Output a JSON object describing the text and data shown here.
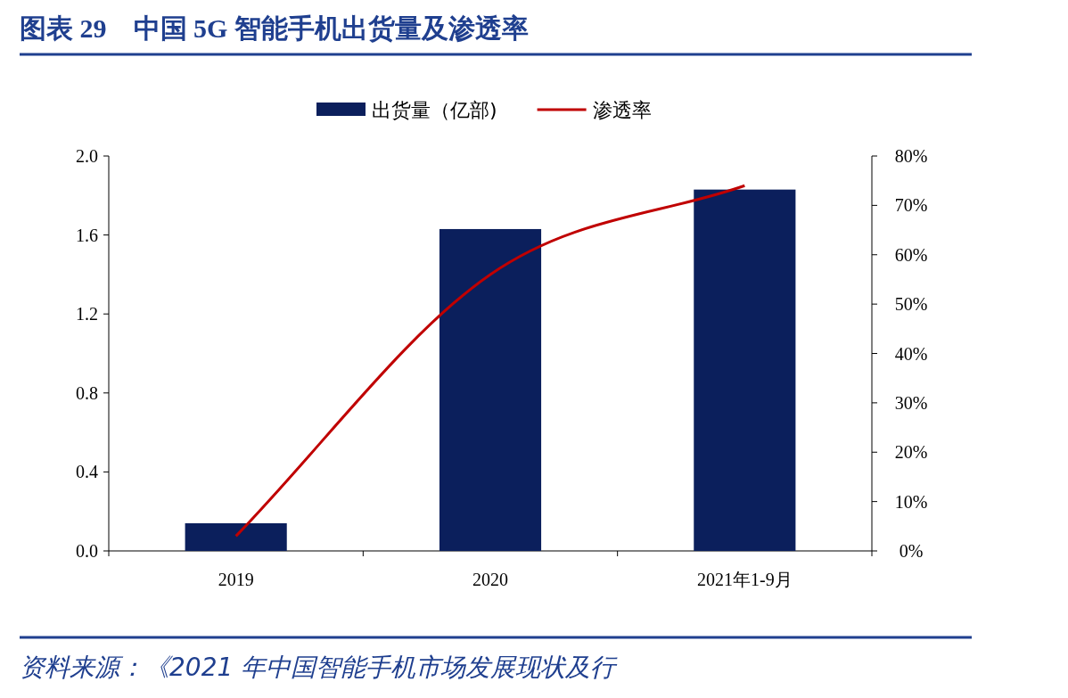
{
  "chart_data": {
    "type": "bar",
    "title": "图表 29　中国 5G 智能手机出货量及渗透率",
    "categories": [
      "2019",
      "2020",
      "2021年1-9月"
    ],
    "series": [
      {
        "name": "出货量（亿部)",
        "color": "#0b1f5c",
        "values": [
          0.14,
          1.63,
          1.83
        ]
      },
      {
        "name": "渗透率",
        "type": "line",
        "axis": "y2",
        "color": "#c00000",
        "values": [
          3,
          56,
          74
        ]
      }
    ],
    "ylim": [
      0,
      2
    ],
    "yticks": [
      {
        "value": 0,
        "label": "0.0"
      },
      {
        "value": 0.4,
        "label": "0.4"
      },
      {
        "value": 0.8,
        "label": "0.8"
      },
      {
        "value": 1.2,
        "label": "1.2"
      },
      {
        "value": 1.6,
        "label": "1.6"
      },
      {
        "value": 2,
        "label": "2.0"
      }
    ],
    "y2lim": [
      0,
      80
    ],
    "y2ticks": [
      {
        "value": 0,
        "label": "0%"
      },
      {
        "value": 10,
        "label": "10%"
      },
      {
        "value": 20,
        "label": "20%"
      },
      {
        "value": 30,
        "label": "30%"
      },
      {
        "value": 40,
        "label": "40%"
      },
      {
        "value": 50,
        "label": "50%"
      },
      {
        "value": 60,
        "label": "60%"
      },
      {
        "value": 70,
        "label": "70%"
      },
      {
        "value": 80,
        "label": "80%"
      }
    ],
    "legend": "top",
    "annotations": [
      "资料来源：《2021 年中国智能手机市场发展现状及行"
    ]
  }
}
